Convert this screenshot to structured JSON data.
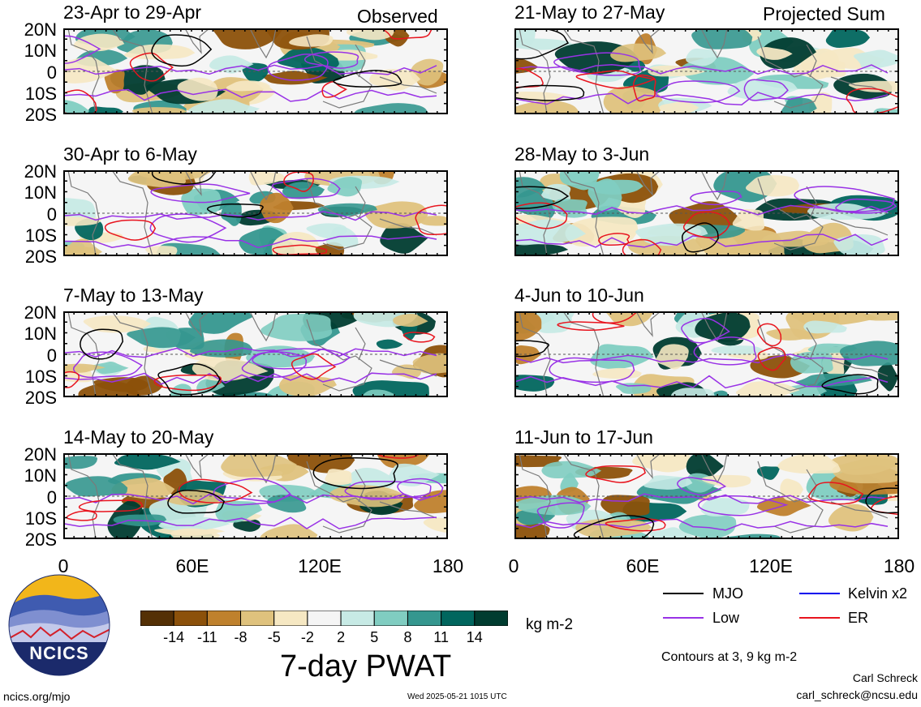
{
  "header_left": "Observed",
  "header_right": "Projected Sum",
  "lat_labels": [
    "20N",
    "10N",
    "0",
    "10S",
    "20S"
  ],
  "lon_labels": [
    "0",
    "60E",
    "120E",
    "180"
  ],
  "panels_left": [
    {
      "title": "23-Apr to 29-Apr"
    },
    {
      "title": "30-Apr to 6-May"
    },
    {
      "title": "7-May to 13-May"
    },
    {
      "title": "14-May to 20-May"
    }
  ],
  "panels_right": [
    {
      "title": "21-May to 27-May"
    },
    {
      "title": "28-May to 3-Jun"
    },
    {
      "title": "4-Jun to 10-Jun"
    },
    {
      "title": "11-Jun to 17-Jun"
    }
  ],
  "colorbar": {
    "title": "7-day PWAT",
    "units": "kg m-2",
    "ticks": [
      "-14",
      "-11",
      "-8",
      "-5",
      "-2",
      "2",
      "5",
      "8",
      "11",
      "14"
    ],
    "colors": [
      "#543005",
      "#8c510a",
      "#bf812d",
      "#dfc27d",
      "#f6e8c3",
      "#f5f5f5",
      "#c7eae5",
      "#80cdc1",
      "#35978f",
      "#01665e",
      "#003c30"
    ]
  },
  "legend": {
    "mjo": "MJO",
    "kelvin": "Kelvin x2",
    "low": "Low",
    "er": "ER",
    "mjo_color": "#000000",
    "kelvin_color": "#0000ee",
    "low_color": "#9932e6",
    "er_color": "#e8141e"
  },
  "contours_note": "Contours at 3, 9 kg m-2",
  "author": "Carl Schreck",
  "email": "carl_schreck@ncsu.edu",
  "website": "ncics.org/mjo",
  "timestamp": "Wed 2025-05-21 1015 UTC",
  "logo_text": "NCICS"
}
